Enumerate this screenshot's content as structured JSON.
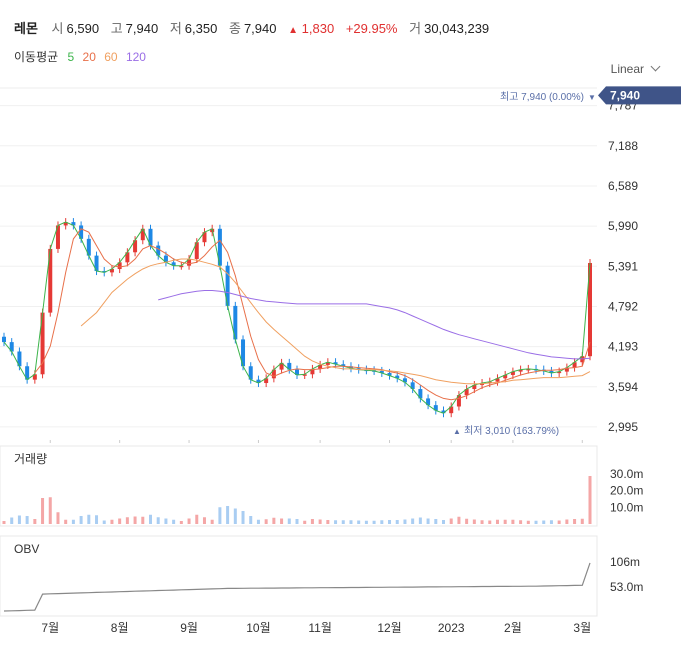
{
  "header": {
    "name": "레몬",
    "open_label": "시",
    "open": "6,590",
    "high_label": "고",
    "high": "7,940",
    "low_label": "저",
    "low": "6,350",
    "close_label": "종",
    "close": "7,940",
    "change_arrow": "▲",
    "change": "1,830",
    "change_pct": "+29.95%",
    "volume_label": "거",
    "volume": "30,043,239"
  },
  "ma": {
    "label": "이동평균",
    "items": [
      {
        "period": "5",
        "color": "#3cb44b"
      },
      {
        "period": "20",
        "color": "#e8704a"
      },
      {
        "period": "60",
        "color": "#f0a060"
      },
      {
        "period": "120",
        "color": "#9a6ee6"
      }
    ]
  },
  "scale_selector": "Linear",
  "colors": {
    "up": "#e53935",
    "down": "#1e88e5",
    "badge": "#3f5488",
    "annotation": "#5a6fa8"
  },
  "chart_data": [
    {
      "type": "candlestick",
      "x_ticks": [
        "7월",
        "8월",
        "9월",
        "10월",
        "11월",
        "12월",
        "2023",
        "2월",
        "3월"
      ],
      "y_ticks": [
        "2,995",
        "3,594",
        "4,193",
        "4,792",
        "5,391",
        "5,990",
        "6,589",
        "7,188",
        "7,787"
      ],
      "ylim": [
        2800,
        8050
      ],
      "last_price_badge": "7,940",
      "annotations": {
        "high": "최고 7,940 (0.00%)",
        "low": "최저 3,010 (163.79%)"
      },
      "series": [
        {
          "name": "5",
          "values": [
            4260,
            4120,
            3900,
            3700,
            3780,
            4700,
            5650,
            6000,
            6050,
            6000,
            5800,
            5550,
            5320,
            5300,
            5350,
            5450,
            5600,
            5780,
            5950,
            5700,
            5550,
            5450,
            5400,
            5400,
            5500,
            5750,
            5900,
            5950,
            5400,
            4800,
            4300,
            3900,
            3700,
            3650,
            3720,
            3850,
            3950,
            3850,
            3770,
            3780,
            3860,
            3920,
            3960,
            3930,
            3900,
            3870,
            3850,
            3840,
            3830,
            3800,
            3760,
            3720,
            3660,
            3560,
            3420,
            3320,
            3240,
            3200,
            3300,
            3470,
            3560,
            3620,
            3650,
            3670,
            3720,
            3770,
            3820,
            3850,
            3860,
            3850,
            3830,
            3800,
            3820,
            3880,
            3960,
            4050,
            5440
          ]
        },
        {
          "name": "20",
          "values": [
            null,
            null,
            null,
            null,
            3800,
            3950,
            4200,
            4700,
            5300,
            5800,
            5950,
            5900,
            5700,
            5500,
            5400,
            5380,
            5400,
            5500,
            5650,
            5700,
            5650,
            5580,
            5500,
            5450,
            5430,
            5450,
            5550,
            5680,
            5780,
            5600,
            5250,
            4800,
            4350,
            4000,
            3800,
            3750,
            3800,
            3840,
            3860,
            3850,
            3850,
            3860,
            3880,
            3900,
            3900,
            3890,
            3880,
            3870,
            3860,
            3850,
            3820,
            3800,
            3760,
            3700,
            3620,
            3540,
            3470,
            3420,
            3400,
            3420,
            3460,
            3520,
            3580,
            3620,
            3650,
            3690,
            3730,
            3770,
            3800,
            3820,
            3840,
            3840,
            3850,
            3870,
            3880,
            3900,
            4260
          ]
        },
        {
          "name": "60",
          "values": [
            null,
            null,
            null,
            null,
            null,
            null,
            null,
            null,
            null,
            null,
            4500,
            4600,
            4700,
            4850,
            5000,
            5100,
            5200,
            5280,
            5350,
            5400,
            5430,
            5450,
            5480,
            5500,
            5500,
            5480,
            5450,
            5420,
            5380,
            5280,
            5150,
            5000,
            4850,
            4700,
            4560,
            4450,
            4350,
            4250,
            4150,
            4050,
            3980,
            3930,
            3900,
            3880,
            3860,
            3860,
            3850,
            3850,
            3850,
            3840,
            3830,
            3820,
            3800,
            3780,
            3760,
            3730,
            3700,
            3680,
            3660,
            3650,
            3640,
            3640,
            3640,
            3650,
            3660,
            3670,
            3690,
            3700,
            3710,
            3720,
            3730,
            3730,
            3730,
            3740,
            3750,
            3760,
            3820
          ]
        },
        {
          "name": "120",
          "values": [
            null,
            null,
            null,
            null,
            null,
            null,
            null,
            null,
            null,
            null,
            null,
            null,
            null,
            null,
            null,
            null,
            null,
            null,
            null,
            null,
            4890,
            4920,
            4950,
            4980,
            5000,
            5020,
            5030,
            5030,
            5020,
            5000,
            4970,
            4940,
            4910,
            4890,
            4870,
            4860,
            4850,
            4840,
            4830,
            4830,
            4830,
            4830,
            4830,
            4830,
            4830,
            4830,
            4830,
            4830,
            4810,
            4790,
            4770,
            4740,
            4700,
            4650,
            4600,
            4550,
            4500,
            4450,
            4410,
            4370,
            4340,
            4310,
            4280,
            4250,
            4220,
            4190,
            4160,
            4130,
            4100,
            4080,
            4060,
            4040,
            4030,
            4020,
            4010,
            4010,
            4020
          ]
        }
      ],
      "volume_ticks": [
        "30.0m",
        "20.0m",
        "10.0m"
      ],
      "obv_ticks": [
        "106m",
        "53.0m"
      ]
    }
  ],
  "panels": {
    "volume_label": "거래량",
    "obv_label": "OBV"
  }
}
